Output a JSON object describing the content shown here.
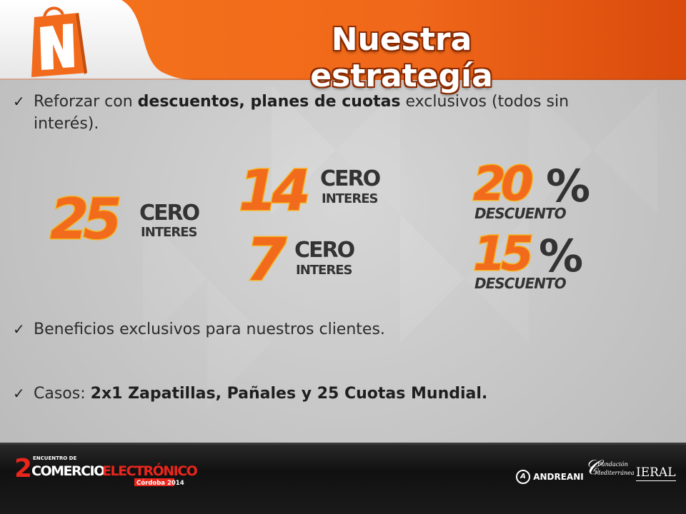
{
  "header": {
    "title": "Nuestra estrategía",
    "logo_letter": "N"
  },
  "bullets": [
    {
      "icon": "check-icon",
      "parts": [
        {
          "text": "Reforzar con ",
          "bold": false
        },
        {
          "text": "descuentos, planes de cuotas",
          "bold": true
        },
        {
          "text": " exclusivos (todos sin",
          "bold": false
        }
      ],
      "line2": "interés)."
    },
    {
      "icon": "check-icon",
      "text": "Beneficios exclusivos para nuestros clientes."
    },
    {
      "icon": "check-icon",
      "prefix": "Casos: ",
      "bold": "2x1 Zapatillas, Pañales y 25 Cuotas Mundial."
    }
  ],
  "badges": {
    "cuotas_25": {
      "number": "25",
      "line1": "CERO",
      "line2": "INTERES"
    },
    "cuotas_14": {
      "number": "14",
      "line1": "CERO",
      "line2": "INTERES"
    },
    "cuotas_7": {
      "number": "7",
      "line1": "CERO",
      "line2": "INTERES"
    },
    "descuento_20": {
      "number": "20",
      "symbol": "%",
      "label": "DESCUENTO"
    },
    "descuento_15": {
      "number": "15",
      "symbol": "%",
      "label": "DESCUENTO"
    }
  },
  "footer": {
    "event_sup": "2",
    "event_small": "ENCUENTRO DE",
    "event_word1": "COMERCIO",
    "event_word2": "ELECTRÓNICO",
    "event_city": "Córdoba 2014",
    "sponsor1": "ANDREANI",
    "sponsor2_line1": "Fundación",
    "sponsor2_line2": "Mediterránea",
    "sponsor3": "IERAL"
  },
  "colors": {
    "accent_orange": "#f26a1b",
    "accent_dark_orange": "#d8460b",
    "badge_yellow": "#f6a81f",
    "text_dark": "#2b2b2b",
    "footer_bg": "#151515"
  }
}
